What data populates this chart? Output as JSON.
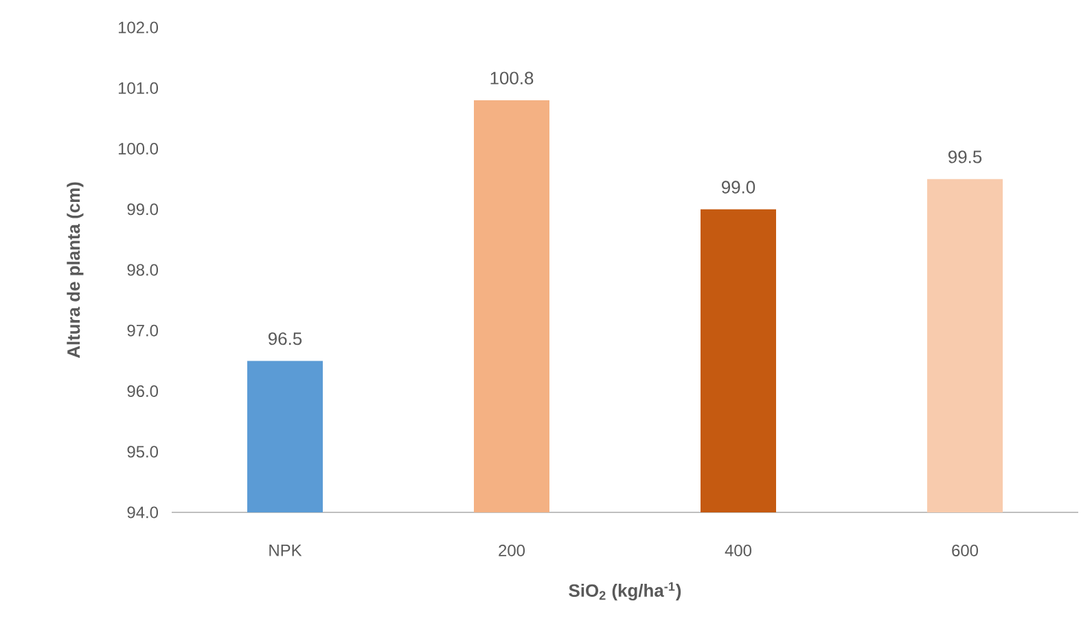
{
  "chart_data": {
    "type": "bar",
    "xlabel": "SiO$_{2}$ (kg/ha$^{-1}$)",
    "ylabel": "Altura de planta (cm)",
    "categories": [
      "NPK",
      "200",
      "400",
      "600"
    ],
    "values": [
      96.5,
      100.8,
      99.0,
      99.5
    ],
    "colors": [
      "#5b9bd5",
      "#f4b183",
      "#c55a11",
      "#f8cbad"
    ],
    "value_labels": [
      "96.5",
      "100.8",
      "99.0",
      "99.5"
    ],
    "ylim": [
      94,
      102
    ],
    "yticks": [
      {
        "value": 94,
        "label": "94.0"
      },
      {
        "value": 95,
        "label": "95.0"
      },
      {
        "value": 96,
        "label": "96.0"
      },
      {
        "value": 97,
        "label": "97.0"
      },
      {
        "value": 98,
        "label": "98.0"
      },
      {
        "value": 99,
        "label": "99.0"
      },
      {
        "value": 100,
        "label": "100.0"
      },
      {
        "value": 101,
        "label": "101.0"
      },
      {
        "value": 102,
        "label": "102.0"
      }
    ],
    "grid": false
  }
}
